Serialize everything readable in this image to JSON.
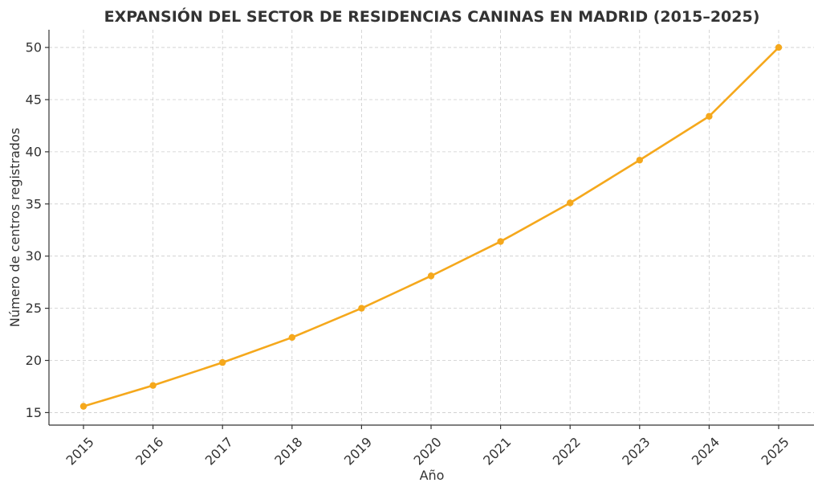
{
  "chart_data": {
    "type": "line",
    "title": "EXPANSIÓN DEL SECTOR DE RESIDENCIAS CANINAS EN MADRID (2015–2025)",
    "xlabel": "Año",
    "ylabel": "Número de centros registrados",
    "categories": [
      "2015",
      "2016",
      "2017",
      "2018",
      "2019",
      "2020",
      "2021",
      "2022",
      "2023",
      "2024",
      "2025"
    ],
    "series": [
      {
        "values": [
          15.6,
          17.6,
          19.8,
          22.2,
          25.0,
          28.1,
          31.4,
          35.1,
          39.2,
          43.4,
          50.0
        ]
      }
    ],
    "yticks": [
      15,
      20,
      25,
      30,
      35,
      40,
      45,
      50
    ],
    "ylim": [
      13.8,
      51.7
    ],
    "grid": true,
    "colors": {
      "line": "#f5a81c",
      "axis": "#333333",
      "grid": "#cccccc"
    }
  }
}
